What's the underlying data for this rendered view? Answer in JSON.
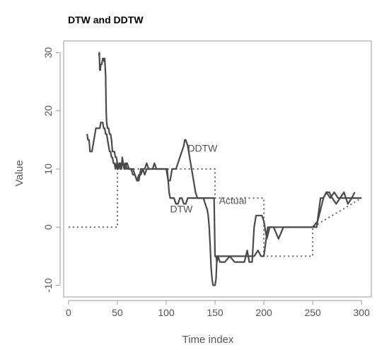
{
  "chart_data": {
    "type": "line",
    "title": "DTW and DDTW",
    "xlabel": "Time index",
    "ylabel": "Value",
    "xlim": [
      -5,
      310
    ],
    "ylim": [
      -12,
      32
    ],
    "xticks": [
      0,
      50,
      100,
      150,
      200,
      250,
      300
    ],
    "yticks": [
      -10,
      0,
      10,
      20,
      30
    ],
    "grid": false,
    "legend": "none",
    "annotations": [
      {
        "text": "DDTW",
        "x": 122,
        "y": 13
      },
      {
        "text": "DTW",
        "x": 104,
        "y": 2.5
      },
      {
        "text": "Actual",
        "x": 154,
        "y": 4
      }
    ],
    "series": [
      {
        "style": "dotted",
        "color": "#666666",
        "x": [
          0,
          50,
          50,
          150,
          150,
          200,
          200,
          250,
          250,
          300
        ],
        "y": [
          0,
          0,
          10,
          10,
          5,
          5,
          -5,
          -5,
          0,
          5
        ]
      },
      {
        "style": "solid",
        "color": "#4a4a4a",
        "x": [
          31,
          31.5,
          32,
          32.5,
          33,
          34,
          35,
          36,
          36.5,
          37,
          38,
          38.5,
          39,
          40,
          41,
          42,
          43,
          44,
          45,
          46,
          47,
          48,
          49,
          50,
          51,
          52,
          53,
          54,
          55,
          56,
          57,
          58,
          60,
          62,
          64,
          66,
          68,
          70,
          72,
          74,
          76,
          78,
          80,
          82,
          84,
          86,
          88,
          90,
          92,
          94,
          96,
          98,
          100,
          101,
          102,
          103,
          104,
          106,
          108,
          110,
          112,
          114,
          116,
          118,
          120,
          122,
          124,
          126,
          128,
          130,
          132,
          134,
          136,
          138,
          140,
          142,
          144,
          146,
          147,
          148,
          149,
          150,
          151,
          152,
          153,
          155,
          157,
          160,
          165,
          170,
          175,
          180,
          185,
          190,
          194,
          197,
          200,
          204,
          210,
          220,
          230,
          240,
          250,
          254,
          258,
          261,
          264,
          268,
          272,
          276,
          280,
          285,
          290,
          295,
          300
        ],
        "y": [
          29.5,
          30,
          27,
          27,
          28,
          28,
          29,
          29,
          28.5,
          29,
          26,
          20,
          18,
          17,
          17,
          16,
          16,
          15,
          13,
          13,
          13,
          12,
          12,
          11,
          10,
          11,
          11,
          10,
          12,
          11,
          10,
          11,
          10,
          10,
          10,
          9,
          9,
          8,
          9,
          9,
          10,
          9,
          10,
          10,
          10,
          10,
          10,
          10,
          10,
          10,
          10,
          10,
          10,
          10,
          8,
          6,
          5,
          5,
          5,
          4,
          4,
          5,
          5,
          4,
          4,
          5,
          5,
          5,
          5,
          5,
          5,
          5,
          5,
          5,
          5,
          5,
          5,
          5,
          5,
          5,
          5,
          -5,
          -5,
          -6,
          -5,
          -5,
          -5,
          -5,
          -5,
          -5,
          -5,
          -5,
          -5,
          -5,
          -4,
          -5,
          -5,
          0,
          0,
          0,
          0,
          0,
          0,
          0,
          5,
          5,
          6,
          5,
          6,
          5,
          5,
          5,
          5,
          5,
          5
        ]
      },
      {
        "style": "solid",
        "color": "#4a4a4a",
        "x": [
          19,
          20,
          21,
          22,
          23,
          24,
          25,
          26,
          27,
          28,
          29,
          30,
          31,
          32,
          33,
          34,
          35,
          36,
          37,
          38,
          39,
          40,
          41,
          42,
          43,
          44,
          45,
          46,
          47,
          48,
          49,
          50,
          51,
          52,
          53,
          54,
          55,
          56,
          57,
          58,
          59,
          60,
          62,
          64,
          66,
          68,
          70,
          72,
          74,
          76,
          78,
          80,
          82,
          84,
          86,
          88,
          90,
          92,
          94,
          96,
          98,
          100,
          102,
          104,
          106,
          108,
          110,
          112,
          114,
          116,
          118,
          119,
          120,
          122,
          124,
          126,
          128,
          130,
          132,
          134,
          136,
          138,
          140,
          142,
          143,
          144,
          145,
          146,
          147,
          148,
          149,
          150,
          151,
          152,
          153,
          155,
          157,
          160,
          165,
          170,
          175,
          180,
          183,
          185,
          188,
          190,
          192,
          194,
          196,
          198,
          200,
          203,
          206,
          210,
          215,
          220,
          230,
          240,
          250,
          255,
          258,
          261,
          264,
          267,
          270,
          274,
          278,
          282,
          286,
          290,
          293
        ],
        "y": [
          16,
          15,
          15,
          13,
          13,
          13,
          14,
          15,
          16,
          17,
          17,
          17,
          17,
          17,
          18,
          18,
          18,
          17,
          17,
          16,
          16,
          15,
          14,
          13,
          13,
          12,
          12,
          11,
          11,
          10,
          11,
          10,
          10,
          11,
          10,
          10,
          11,
          11,
          10,
          10,
          11,
          11,
          10,
          10,
          10,
          9,
          8,
          8,
          10,
          10,
          10,
          11,
          10,
          10,
          10,
          11,
          10,
          10,
          10,
          10,
          10,
          10,
          8,
          8,
          10,
          10,
          10,
          11,
          12,
          13,
          14,
          15,
          15,
          14,
          12,
          10,
          8,
          6,
          5,
          5,
          5,
          5,
          4,
          3,
          2,
          0,
          -3,
          -7,
          -9,
          -10,
          -10,
          -10,
          -9,
          -5,
          -5,
          -6,
          -6,
          -6,
          -5,
          -6,
          -6,
          -6,
          -4,
          -6,
          -6,
          0,
          2,
          2,
          2,
          2,
          1,
          -2,
          0,
          0,
          -2,
          0,
          0,
          0,
          0,
          1,
          3,
          5,
          6,
          6,
          5,
          4,
          5,
          6,
          4,
          5,
          6
        ]
      }
    ]
  }
}
